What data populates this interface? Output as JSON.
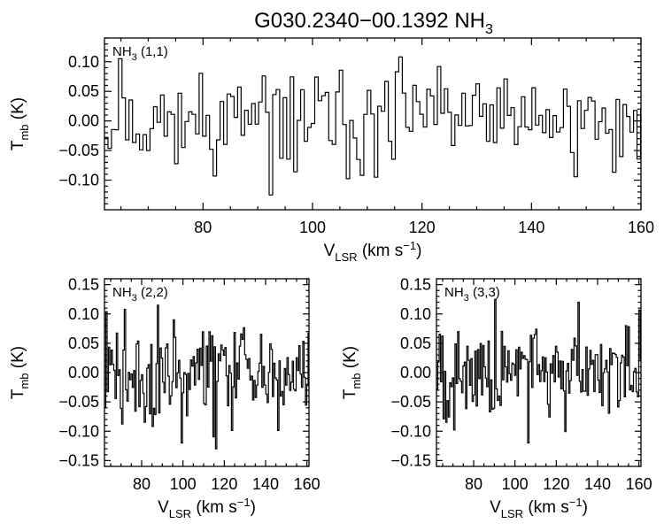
{
  "figure": {
    "title": "G030.2340−00.1392 NH",
    "title_sub": "3"
  },
  "chart_data": [
    {
      "type": "line",
      "annotation": "NH3 (1,1)",
      "annotation_main": "NH",
      "annotation_sub": "3",
      "annotation_tail": " (1,1)",
      "xlabel": "V_LSR (km s^-1)",
      "ylabel": "T_mb (K)",
      "xlim": [
        62,
        160
      ],
      "ylim": [
        -0.15,
        0.14
      ],
      "xticks": [
        80,
        100,
        120,
        140,
        160
      ],
      "yticks": [
        -0.1,
        -0.05,
        0.0,
        0.05,
        0.1
      ],
      "ytick_labels": [
        "−0.10",
        "−0.05",
        "0.00",
        "0.05",
        "0.10"
      ],
      "xtick_labels": [
        "80",
        "100",
        "120",
        "140",
        "160"
      ],
      "x_step_km_s": 0.64,
      "notable_values": [
        {
          "x": 64.5,
          "y": 0.105
        },
        {
          "x": 92.0,
          "y": -0.125
        },
        {
          "x": 111.5,
          "y": -0.095
        },
        {
          "x": 116.0,
          "y": 0.108
        }
      ]
    },
    {
      "type": "line",
      "annotation": "NH3 (2,2)",
      "annotation_main": "NH",
      "annotation_sub": "3",
      "annotation_tail": " (2,2)",
      "xlabel": "V_LSR (km s^-1)",
      "ylabel": "T_mb (K)",
      "xlim": [
        62,
        161
      ],
      "ylim": [
        -0.16,
        0.16
      ],
      "xticks": [
        80,
        100,
        120,
        140,
        160
      ],
      "yticks": [
        -0.15,
        -0.1,
        -0.05,
        0.0,
        0.05,
        0.1,
        0.15
      ],
      "ytick_labels": [
        "−0.15",
        "−0.10",
        "−0.05",
        "0.00",
        "0.05",
        "0.10",
        "0.15"
      ],
      "xtick_labels": [
        "80",
        "100",
        "120",
        "140",
        "160"
      ],
      "x_step_km_s": 0.64,
      "notable_values": [
        {
          "x": 87.5,
          "y": 0.115
        },
        {
          "x": 99.0,
          "y": -0.12
        },
        {
          "x": 115.5,
          "y": -0.13
        }
      ]
    },
    {
      "type": "line",
      "annotation": "NH3 (3,3)",
      "annotation_main": "NH",
      "annotation_sub": "3",
      "annotation_tail": " (3,3)",
      "xlabel": "V_LSR (km s^-1)",
      "ylabel": "T_mb (K)",
      "xlim": [
        62,
        161
      ],
      "ylim": [
        -0.16,
        0.16
      ],
      "xticks": [
        80,
        100,
        120,
        140,
        160
      ],
      "yticks": [
        -0.15,
        -0.1,
        -0.05,
        0.0,
        0.05,
        0.1,
        0.15
      ],
      "ytick_labels": [
        "−0.15",
        "−0.10",
        "−0.05",
        "0.00",
        "0.05",
        "0.10",
        "0.15"
      ],
      "xtick_labels": [
        "80",
        "100",
        "120",
        "140",
        "160"
      ],
      "x_step_km_s": 0.64,
      "notable_values": [
        {
          "x": 90.0,
          "y": 0.125
        },
        {
          "x": 106.0,
          "y": -0.12
        },
        {
          "x": 130.5,
          "y": 0.12
        }
      ]
    }
  ]
}
